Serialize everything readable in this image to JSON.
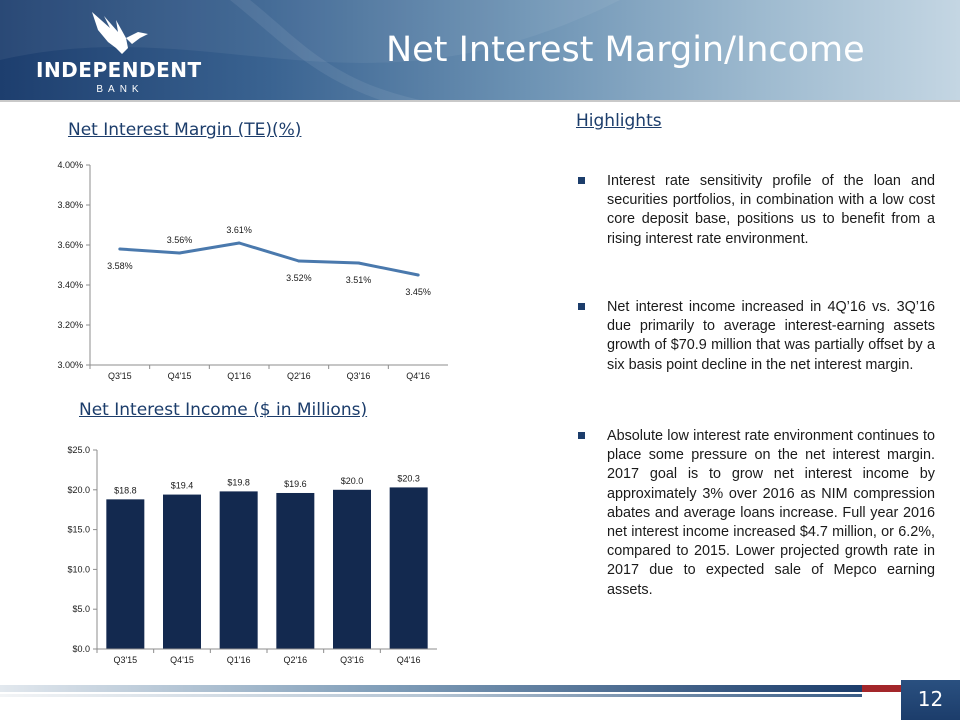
{
  "header": {
    "logo_name": "INDEPENDENT",
    "logo_sub": "BANK",
    "title": "Net Interest Margin/Income",
    "colors": {
      "dark_navy": "#1c3d6b",
      "light_blue": "#c4d6e3"
    }
  },
  "chart_titles": {
    "nim": "Net Interest Margin (TE)(%)",
    "nii": "Net Interest Income ($ in Millions)"
  },
  "highlights": {
    "heading": "Highlights",
    "bullets": [
      "Interest rate sensitivity profile of the loan and securities portfolios, in combination with a low cost core deposit base, positions us to benefit from a rising interest rate environment.",
      "Net interest income increased in 4Q’16 vs. 3Q’16 due primarily to average interest-earning assets growth of $70.9 million that was partially offset by a six basis point decline in the net interest margin.",
      "Absolute low interest rate environment continues to place some pressure on the net interest margin. 2017 goal is to grow net interest income by approximately 3% over 2016 as NIM compression abates and average loans increase. Full year 2016 net interest income increased $4.7 million, or 6.2%, compared to 2015. Lower projected growth rate in 2017 due to expected sale of Mepco earning assets."
    ]
  },
  "footer": {
    "page_number": "12",
    "accent_color": "#a3262a"
  },
  "chart_data": [
    {
      "type": "line",
      "title": "Net Interest Margin (TE)(%)",
      "categories": [
        "Q3'15",
        "Q4'15",
        "Q1'16",
        "Q2'16",
        "Q3'16",
        "Q4'16"
      ],
      "values": [
        3.58,
        3.56,
        3.61,
        3.52,
        3.51,
        3.45
      ],
      "data_labels": [
        "3.58%",
        "3.56%",
        "3.61%",
        "3.52%",
        "3.51%",
        "3.45%"
      ],
      "ylim": [
        3.0,
        4.0
      ],
      "yticks": [
        3.0,
        3.2,
        3.4,
        3.6,
        3.8,
        4.0
      ],
      "ytick_labels": [
        "3.00%",
        "3.20%",
        "3.40%",
        "3.60%",
        "3.80%",
        "4.00%"
      ],
      "line_color": "#4a79ad",
      "grid": false,
      "legend": "none"
    },
    {
      "type": "bar",
      "title": "Net Interest Income ($ in Millions)",
      "categories": [
        "Q3'15",
        "Q4'15",
        "Q1'16",
        "Q2'16",
        "Q3'16",
        "Q4'16"
      ],
      "values": [
        18.8,
        19.4,
        19.8,
        19.6,
        20.0,
        20.3
      ],
      "data_labels": [
        "$18.8",
        "$19.4",
        "$19.8",
        "$19.6",
        "$20.0",
        "$20.3"
      ],
      "ylim": [
        0,
        25
      ],
      "yticks": [
        0,
        5,
        10,
        15,
        20,
        25
      ],
      "ytick_labels": [
        "$0.0",
        "$5.0",
        "$10.0",
        "$15.0",
        "$20.0",
        "$25.0"
      ],
      "bar_color": "#13294f",
      "grid": false,
      "legend": "none"
    }
  ]
}
